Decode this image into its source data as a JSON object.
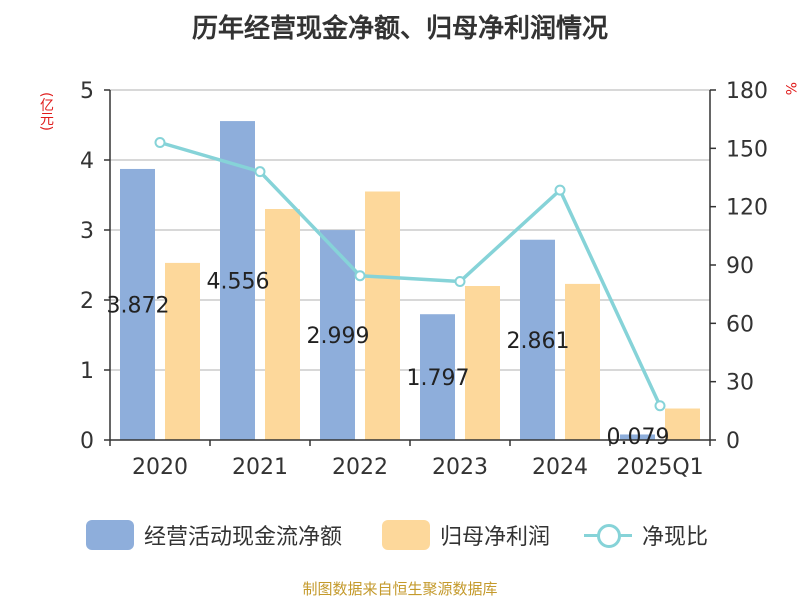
{
  "chart_data": {
    "type": "bar+line",
    "title": "历年经营现金净额、归母净利润情况",
    "left_unit": "(亿元)",
    "right_unit": "%",
    "categories": [
      "2020",
      "2021",
      "2022",
      "2023",
      "2024",
      "2025Q1"
    ],
    "left_axis": {
      "min": 0,
      "max": 5,
      "ticks": [
        "0",
        "1",
        "2",
        "3",
        "4",
        "5"
      ]
    },
    "right_axis": {
      "min": 0,
      "max": 180,
      "ticks": [
        "0",
        "30",
        "60",
        "90",
        "120",
        "150",
        "180"
      ]
    },
    "series": [
      {
        "name": "经营活动现金流净额",
        "type": "bar",
        "axis": "left",
        "color": "#8eaedb",
        "values": [
          3.872,
          4.556,
          2.999,
          1.797,
          2.861,
          0.079
        ],
        "labels": [
          "3.872",
          "4.556",
          "2.999",
          "1.797",
          "2.861",
          "0.079"
        ]
      },
      {
        "name": "归母净利润",
        "type": "bar",
        "axis": "left",
        "color": "#fdd89b",
        "values": [
          2.53,
          3.3,
          3.55,
          2.2,
          2.23,
          0.45
        ]
      },
      {
        "name": "净现比",
        "type": "line",
        "axis": "right",
        "color": "#86d3d8",
        "values": [
          153,
          138,
          84.5,
          81.5,
          128.5,
          17.6
        ]
      }
    ]
  },
  "source": "制图数据来自恒生聚源数据库"
}
